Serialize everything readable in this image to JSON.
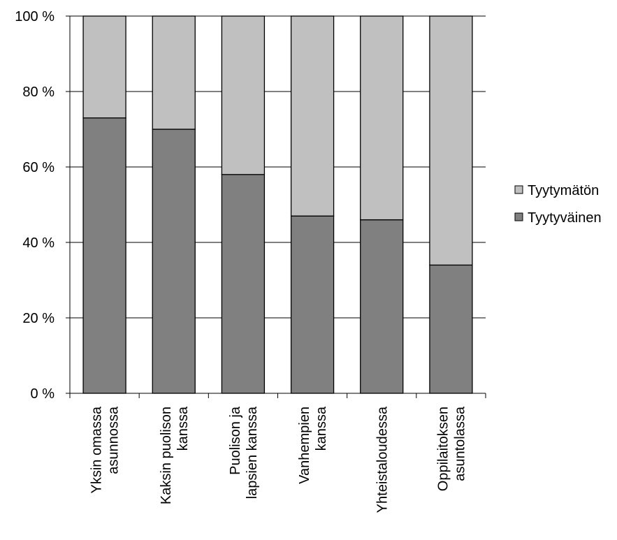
{
  "chart_data": {
    "type": "bar",
    "stacked": true,
    "percent": true,
    "categories": [
      [
        "Yksin omassa",
        "asunnossa"
      ],
      [
        "Kaksin puolison",
        "kanssa"
      ],
      [
        "Puolison ja",
        "lapsien kanssa"
      ],
      [
        "Vanhempien",
        "kanssa"
      ],
      [
        "Yhteistaloudessa"
      ],
      [
        "Oppilaitoksen",
        "asuntolassa"
      ]
    ],
    "series": [
      {
        "name": "Tyytyväinen",
        "color": "#808080",
        "values": [
          73,
          70,
          58,
          47,
          46,
          34
        ]
      },
      {
        "name": "Tyytymätön",
        "color": "#c0c0c0",
        "values": [
          27,
          30,
          42,
          53,
          54,
          66
        ]
      }
    ],
    "ylim": [
      0,
      100
    ],
    "yticks": [
      "0 %",
      "20 %",
      "40 %",
      "60 %",
      "80 %",
      "100 %"
    ],
    "ytick_values": [
      0,
      20,
      40,
      60,
      80,
      100
    ],
    "grid": true,
    "legend": {
      "position": "right",
      "entries": [
        "Tyytymätön",
        "Tyytyväinen"
      ]
    },
    "title": "",
    "xlabel": "",
    "ylabel": ""
  }
}
